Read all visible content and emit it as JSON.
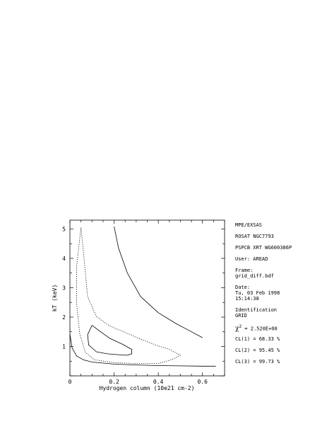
{
  "info_panel": {
    "line1": "MPE/EXSAS",
    "line2": "ROSAT NGC7793",
    "line3": "PSPCB XRT WG600386P",
    "line4": "User: AREAD",
    "frame_label": "Frame:",
    "frame_value": "grid_diff.bdf",
    "date_label": "Date:",
    "date_value": "Tu, 03 Feb 1998",
    "time_value": "15:14:38",
    "ident_label": "Identification",
    "ident_value": "GRID",
    "chi2_symbol": "χ",
    "chi2_exp": "2",
    "chi2_value": " = 2.520E+00",
    "cl1": "CL(1) = 68.33 %",
    "cl2": "CL(2) = 95.45 %",
    "cl3": "CL(3) = 99.73 %"
  },
  "chart_data": {
    "type": "line",
    "title": "",
    "xlabel": "Hydrogen column (10e21 cm-2)",
    "ylabel": "kT (keV)",
    "xlim": [
      0,
      0.7
    ],
    "ylim": [
      0,
      5.3
    ],
    "xticks": [
      0,
      0.2,
      0.4,
      0.6
    ],
    "xtick_labels": [
      "0",
      "0.2",
      "0.4",
      "0.6"
    ],
    "yticks": [
      1,
      2,
      3,
      4,
      5
    ],
    "ytick_labels": [
      "1",
      "2",
      "3",
      "4",
      "5"
    ],
    "grid": false,
    "series": [
      {
        "style": "solid",
        "x": [
          0.1,
          0.08,
          0.085,
          0.12,
          0.17,
          0.22,
          0.26,
          0.28,
          0.28,
          0.24,
          0.18,
          0.13,
          0.1
        ],
        "y": [
          1.72,
          1.4,
          1.05,
          0.82,
          0.75,
          0.72,
          0.7,
          0.75,
          0.9,
          1.07,
          1.28,
          1.55,
          1.72
        ]
      },
      {
        "style": "dotted",
        "x": [
          0.05,
          0.03,
          0.03,
          0.045,
          0.07,
          0.11,
          0.2,
          0.3,
          0.4,
          0.46,
          0.5,
          0.45,
          0.4,
          0.32,
          0.25,
          0.18,
          0.12,
          0.08,
          0.07,
          0.06,
          0.05
        ],
        "y": [
          5.05,
          3.7,
          2.5,
          1.4,
          0.8,
          0.55,
          0.45,
          0.42,
          0.42,
          0.55,
          0.7,
          0.9,
          1.02,
          1.25,
          1.48,
          1.7,
          2.02,
          2.7,
          3.5,
          4.3,
          5.05
        ]
      },
      {
        "style": "solid",
        "x": [
          0.2,
          0.22,
          0.26,
          0.32,
          0.4,
          0.48,
          0.55,
          0.6
        ],
        "y": [
          5.08,
          4.35,
          3.5,
          2.7,
          2.15,
          1.78,
          1.5,
          1.3
        ]
      },
      {
        "style": "solid",
        "x": [
          0.0,
          0.01,
          0.03,
          0.06,
          0.1,
          0.2,
          0.3,
          0.4,
          0.5,
          0.6,
          0.66
        ],
        "y": [
          1.42,
          0.95,
          0.68,
          0.55,
          0.47,
          0.4,
          0.37,
          0.35,
          0.34,
          0.33,
          0.33
        ]
      }
    ]
  }
}
